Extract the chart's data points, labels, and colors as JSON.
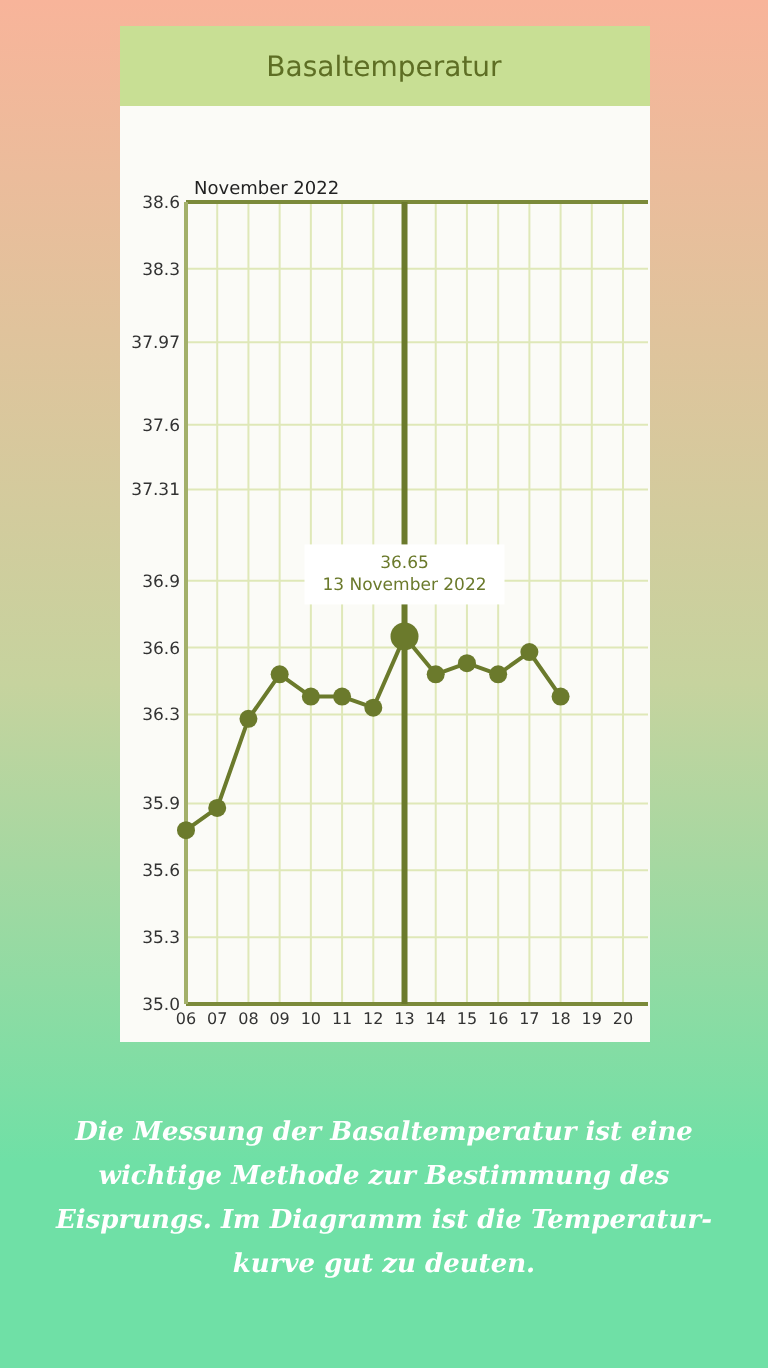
{
  "chart_data": {
    "type": "line",
    "title": "Basaltemperatur",
    "x": [
      6,
      7,
      8,
      9,
      10,
      11,
      12,
      13,
      14,
      15,
      16,
      17,
      18
    ],
    "series": [
      {
        "color": "#6b7a2c",
        "values": [
          35.78,
          35.88,
          36.28,
          36.48,
          36.38,
          36.38,
          36.33,
          36.65,
          36.48,
          36.53,
          36.48,
          36.58,
          36.38
        ]
      }
    ],
    "xlim": [
      6,
      20.8
    ],
    "xticks": [
      {
        "value": 6,
        "label": "06"
      },
      {
        "value": 7,
        "label": "07"
      },
      {
        "value": 8,
        "label": "08"
      },
      {
        "value": 9,
        "label": "09"
      },
      10,
      11,
      12,
      13,
      14,
      15,
      16,
      17,
      18,
      19,
      20
    ],
    "ylim": [
      35.0,
      38.6
    ],
    "yticks": [
      {
        "value": 35.0,
        "label": "35.0"
      },
      35.3,
      35.6,
      35.9,
      36.3,
      36.6,
      36.9,
      37.31,
      37.6,
      37.97,
      38.3,
      38.6
    ],
    "grid": true,
    "marker": "circle",
    "line_style": "solid",
    "ref_lines": [
      {
        "axis": "x",
        "value": 13,
        "color": "#6b7a2c"
      }
    ],
    "annotations": [
      "November 2022",
      "36.65",
      "13 November 2022",
      "Die Messung der Basaltemperatur ist eine wichtige Methode zur Bestimmung des Eisprungs. Im Diagramm ist die Temperatur-kurve gut zu deuten."
    ]
  }
}
